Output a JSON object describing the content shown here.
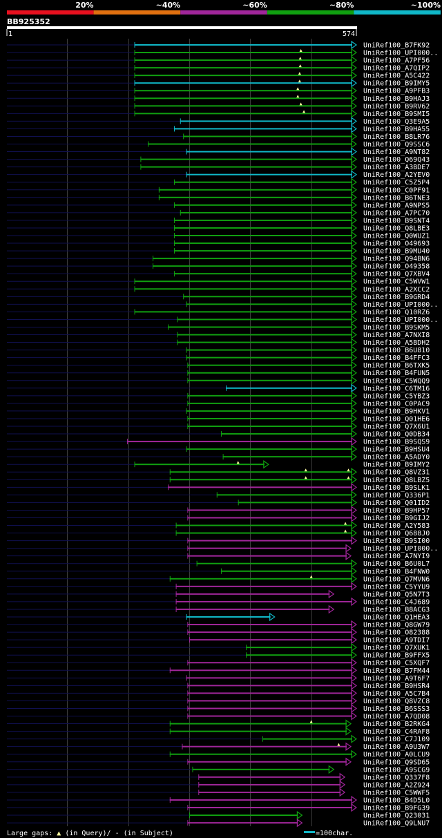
{
  "query_id": "BB925352",
  "ruler": {
    "start_label": "1",
    "end_label": "574",
    "start": 1,
    "end": 574
  },
  "identity_legend": [
    {
      "label": "20%",
      "color": "#e8101f"
    },
    {
      "label": "~40%",
      "color": "#e07010"
    },
    {
      "label": "~60%",
      "color": "#a0269a"
    },
    {
      "label": "~80%",
      "color": "#10a010"
    },
    {
      "label": "~100%",
      "color": "#10b8c8"
    }
  ],
  "footer": {
    "gaps_prefix": "Large gaps:",
    "gaps_query": "(in Query)/",
    "gaps_subject": "- (in Subject)",
    "scale_label": "=100char."
  },
  "chart_data": {
    "type": "alignment-overview",
    "x_axis": {
      "min": 1,
      "max": 574,
      "scale_bar_chars": 100
    },
    "grid": true,
    "hits": [
      {
        "name": "UniRef100_B7FK92",
        "identity": "~100%",
        "start": 210,
        "end": 574,
        "query_gaps": [],
        "arrow": true
      },
      {
        "name": "UniRef100_UPI000..",
        "identity": "~80%",
        "start": 210,
        "end": 574,
        "query_gaps": [
          483
        ],
        "arrow": true
      },
      {
        "name": "UniRef100_A7PF56",
        "identity": "~80%",
        "start": 210,
        "end": 574,
        "query_gaps": [
          482
        ],
        "arrow": true
      },
      {
        "name": "UniRef100_A7QIP2",
        "identity": "~80%",
        "start": 210,
        "end": 574,
        "query_gaps": [
          482
        ],
        "arrow": true
      },
      {
        "name": "UniRef100_A5C422",
        "identity": "~80%",
        "start": 210,
        "end": 574,
        "query_gaps": [
          481
        ],
        "arrow": true
      },
      {
        "name": "UniRef100_B9IMY5",
        "identity": "~100%",
        "start": 210,
        "end": 574,
        "query_gaps": [
          481
        ],
        "arrow": true
      },
      {
        "name": "UniRef100_A9PFB3",
        "identity": "~80%",
        "start": 210,
        "end": 574,
        "query_gaps": [
          478
        ],
        "arrow": true
      },
      {
        "name": "UniRef100_B9HAJ3",
        "identity": "~80%",
        "start": 210,
        "end": 574,
        "query_gaps": [
          478
        ],
        "arrow": true
      },
      {
        "name": "UniRef100_B9RV62",
        "identity": "~80%",
        "start": 210,
        "end": 574,
        "query_gaps": [
          483
        ],
        "arrow": true
      },
      {
        "name": "UniRef100_B9SMI5",
        "identity": "~80%",
        "start": 210,
        "end": 574,
        "query_gaps": [
          488
        ],
        "arrow": true
      },
      {
        "name": "UniRef100_Q3E9A5",
        "identity": "~100%",
        "start": 285,
        "end": 574,
        "query_gaps": [],
        "arrow": true
      },
      {
        "name": "UniRef100_B9HA55",
        "identity": "~100%",
        "start": 275,
        "end": 574,
        "query_gaps": [],
        "arrow": true
      },
      {
        "name": "UniRef100_B8LR76",
        "identity": "~80%",
        "start": 290,
        "end": 574,
        "query_gaps": [],
        "arrow": true
      },
      {
        "name": "UniRef100_Q9SSC6",
        "identity": "~80%",
        "start": 232,
        "end": 574,
        "query_gaps": [],
        "arrow": true
      },
      {
        "name": "UniRef100_A9NT82",
        "identity": "~100%",
        "start": 295,
        "end": 574,
        "query_gaps": [],
        "arrow": true
      },
      {
        "name": "UniRef100_Q69Q43",
        "identity": "~80%",
        "start": 220,
        "end": 574,
        "query_gaps": [],
        "arrow": true
      },
      {
        "name": "UniRef100_A3BDE7",
        "identity": "~80%",
        "start": 220,
        "end": 574,
        "query_gaps": [],
        "arrow": true
      },
      {
        "name": "UniRef100_A2YEV0",
        "identity": "~100%",
        "start": 295,
        "end": 574,
        "query_gaps": [],
        "arrow": true
      },
      {
        "name": "UniRef100_C5Z5P4",
        "identity": "~80%",
        "start": 275,
        "end": 574,
        "query_gaps": [],
        "arrow": true
      },
      {
        "name": "UniRef100_C0PF91",
        "identity": "~80%",
        "start": 250,
        "end": 574,
        "query_gaps": [],
        "arrow": true
      },
      {
        "name": "UniRef100_B6TNE3",
        "identity": "~80%",
        "start": 250,
        "end": 574,
        "query_gaps": [],
        "arrow": true
      },
      {
        "name": "UniRef100_A9NPS5",
        "identity": "~80%",
        "start": 275,
        "end": 574,
        "query_gaps": [],
        "arrow": true
      },
      {
        "name": "UniRef100_A7PC70",
        "identity": "~80%",
        "start": 285,
        "end": 574,
        "query_gaps": [],
        "arrow": true
      },
      {
        "name": "UniRef100_B9SNT4",
        "identity": "~80%",
        "start": 275,
        "end": 574,
        "query_gaps": [],
        "arrow": true
      },
      {
        "name": "UniRef100_Q8LBE3",
        "identity": "~80%",
        "start": 275,
        "end": 574,
        "query_gaps": [],
        "arrow": true
      },
      {
        "name": "UniRef100_Q0WUZ1",
        "identity": "~80%",
        "start": 275,
        "end": 574,
        "query_gaps": [],
        "arrow": true
      },
      {
        "name": "UniRef100_O49693",
        "identity": "~80%",
        "start": 275,
        "end": 574,
        "query_gaps": [],
        "arrow": true
      },
      {
        "name": "UniRef100_B9MU40",
        "identity": "~80%",
        "start": 275,
        "end": 574,
        "query_gaps": [],
        "arrow": true
      },
      {
        "name": "UniRef100_Q94BN6",
        "identity": "~80%",
        "start": 240,
        "end": 574,
        "query_gaps": [],
        "arrow": true
      },
      {
        "name": "UniRef100_O49358",
        "identity": "~80%",
        "start": 240,
        "end": 574,
        "query_gaps": [],
        "arrow": true
      },
      {
        "name": "UniRef100_Q7XBV4",
        "identity": "~80%",
        "start": 275,
        "end": 574,
        "query_gaps": [],
        "arrow": true
      },
      {
        "name": "UniRef100_C5WVW1",
        "identity": "~80%",
        "start": 210,
        "end": 574,
        "query_gaps": [],
        "arrow": true
      },
      {
        "name": "UniRef100_A2XCC2",
        "identity": "~80%",
        "start": 210,
        "end": 574,
        "query_gaps": [],
        "arrow": true
      },
      {
        "name": "UniRef100_B9GRD4",
        "identity": "~80%",
        "start": 290,
        "end": 574,
        "query_gaps": [],
        "arrow": true
      },
      {
        "name": "UniRef100_UPI000..",
        "identity": "~80%",
        "start": 295,
        "end": 574,
        "query_gaps": [],
        "arrow": true
      },
      {
        "name": "UniRef100_Q10RZ6",
        "identity": "~80%",
        "start": 210,
        "end": 574,
        "query_gaps": [],
        "arrow": true
      },
      {
        "name": "UniRef100_UPI000..",
        "identity": "~80%",
        "start": 280,
        "end": 574,
        "query_gaps": [],
        "arrow": true
      },
      {
        "name": "UniRef100_B9SKM5",
        "identity": "~80%",
        "start": 265,
        "end": 574,
        "query_gaps": [],
        "arrow": true
      },
      {
        "name": "UniRef100_A7NXI8",
        "identity": "~80%",
        "start": 280,
        "end": 574,
        "query_gaps": [],
        "arrow": true
      },
      {
        "name": "UniRef100_A5BDH2",
        "identity": "~80%",
        "start": 280,
        "end": 574,
        "query_gaps": [],
        "arrow": true
      },
      {
        "name": "UniRef100_B6U810",
        "identity": "~80%",
        "start": 295,
        "end": 574,
        "query_gaps": [],
        "arrow": true
      },
      {
        "name": "UniRef100_B4FFC3",
        "identity": "~80%",
        "start": 295,
        "end": 574,
        "query_gaps": [],
        "arrow": true
      },
      {
        "name": "UniRef100_B6TXK5",
        "identity": "~80%",
        "start": 297,
        "end": 574,
        "query_gaps": [],
        "arrow": true
      },
      {
        "name": "UniRef100_B4FUN5",
        "identity": "~80%",
        "start": 297,
        "end": 574,
        "query_gaps": [],
        "arrow": true
      },
      {
        "name": "UniRef100_C5WQQ9",
        "identity": "~80%",
        "start": 297,
        "end": 574,
        "query_gaps": [],
        "arrow": true
      },
      {
        "name": "UniRef100_C6TM16",
        "identity": "~100%",
        "start": 360,
        "end": 574,
        "query_gaps": [],
        "arrow": true
      },
      {
        "name": "UniRef100_C5YBZ3",
        "identity": "~80%",
        "start": 297,
        "end": 574,
        "query_gaps": [],
        "arrow": true
      },
      {
        "name": "UniRef100_C0PAC9",
        "identity": "~80%",
        "start": 297,
        "end": 574,
        "query_gaps": [],
        "arrow": true
      },
      {
        "name": "UniRef100_B9HKV1",
        "identity": "~80%",
        "start": 295,
        "end": 574,
        "query_gaps": [],
        "arrow": true
      },
      {
        "name": "UniRef100_Q01HE6",
        "identity": "~80%",
        "start": 297,
        "end": 574,
        "query_gaps": [],
        "arrow": true
      },
      {
        "name": "UniRef100_Q7X6U1",
        "identity": "~80%",
        "start": 297,
        "end": 574,
        "query_gaps": [],
        "arrow": true
      },
      {
        "name": "UniRef100_Q0DB34",
        "identity": "~80%",
        "start": 352,
        "end": 574,
        "query_gaps": [],
        "arrow": true
      },
      {
        "name": "UniRef100_B9SQS9",
        "identity": "~60%",
        "start": 198,
        "end": 574,
        "query_gaps": [],
        "arrow": true
      },
      {
        "name": "UniRef100_B9HSU4",
        "identity": "~80%",
        "start": 295,
        "end": 574,
        "query_gaps": [],
        "arrow": true
      },
      {
        "name": "UniRef100_A5ADY0",
        "identity": "~80%",
        "start": 355,
        "end": 574,
        "query_gaps": [],
        "arrow": true
      },
      {
        "name": "UniRef100_B9IMY2",
        "identity": "~80%",
        "start": 210,
        "end": 430,
        "query_gaps": [
          380
        ],
        "arrow": true
      },
      {
        "name": "UniRef100_Q8VZ31",
        "identity": "~80%",
        "start": 268,
        "end": 574,
        "query_gaps": [
          491,
          561
        ],
        "arrow": true
      },
      {
        "name": "UniRef100_Q8LBZ5",
        "identity": "~80%",
        "start": 268,
        "end": 574,
        "query_gaps": [
          491,
          561
        ],
        "arrow": true
      },
      {
        "name": "UniRef100_B9SLK1",
        "identity": "~60%",
        "start": 265,
        "end": 574,
        "query_gaps": [],
        "arrow": true
      },
      {
        "name": "UniRef100_Q336P1",
        "identity": "~80%",
        "start": 345,
        "end": 574,
        "query_gaps": [],
        "arrow": true
      },
      {
        "name": "UniRef100_Q01ID2",
        "identity": "~80%",
        "start": 380,
        "end": 574,
        "query_gaps": [],
        "arrow": true
      },
      {
        "name": "UniRef100_B9HP57",
        "identity": "~60%",
        "start": 297,
        "end": 574,
        "query_gaps": [],
        "arrow": true
      },
      {
        "name": "UniRef100_B9GIJ2",
        "identity": "~60%",
        "start": 297,
        "end": 574,
        "query_gaps": [],
        "arrow": true
      },
      {
        "name": "UniRef100_A2Y583",
        "identity": "~80%",
        "start": 278,
        "end": 574,
        "query_gaps": [
          556
        ],
        "arrow": true
      },
      {
        "name": "UniRef100_Q688J0",
        "identity": "~80%",
        "start": 278,
        "end": 574,
        "query_gaps": [
          556
        ],
        "arrow": true
      },
      {
        "name": "UniRef100_B9SI00",
        "identity": "~60%",
        "start": 297,
        "end": 574,
        "query_gaps": [],
        "arrow": true
      },
      {
        "name": "UniRef100_UPI000..",
        "identity": "~60%",
        "start": 297,
        "end": 565,
        "query_gaps": [],
        "arrow": true
      },
      {
        "name": "UniRef100_A7NYI9",
        "identity": "~60%",
        "start": 297,
        "end": 565,
        "query_gaps": [],
        "arrow": true
      },
      {
        "name": "UniRef100_B6U0L7",
        "identity": "~80%",
        "start": 312,
        "end": 574,
        "query_gaps": [],
        "arrow": true
      },
      {
        "name": "UniRef100_B4FNW0",
        "identity": "~80%",
        "start": 352,
        "end": 574,
        "query_gaps": [],
        "arrow": true
      },
      {
        "name": "UniRef100_Q7MVN6",
        "identity": "~80%",
        "start": 268,
        "end": 574,
        "query_gaps": [
          500
        ],
        "arrow": true
      },
      {
        "name": "UniRef100_C5YYU9",
        "identity": "~60%",
        "start": 278,
        "end": 574,
        "query_gaps": [],
        "arrow": true
      },
      {
        "name": "UniRef100_Q5N7T3",
        "identity": "~60%",
        "start": 278,
        "end": 537,
        "query_gaps": [],
        "arrow": true
      },
      {
        "name": "UniRef100_C4J689",
        "identity": "~60%",
        "start": 278,
        "end": 574,
        "query_gaps": [],
        "arrow": true
      },
      {
        "name": "UniRef100_B8ACG3",
        "identity": "~60%",
        "start": 278,
        "end": 537,
        "query_gaps": [],
        "arrow": true
      },
      {
        "name": "UniRef100_Q1HEA3",
        "identity": "~100%",
        "start": 295,
        "end": 440,
        "query_gaps": [],
        "arrow": true
      },
      {
        "name": "UniRef100_Q8GW79",
        "identity": "~60%",
        "start": 297,
        "end": 574,
        "query_gaps": [],
        "arrow": true
      },
      {
        "name": "UniRef100_O82388",
        "identity": "~60%",
        "start": 297,
        "end": 574,
        "query_gaps": [],
        "arrow": true
      },
      {
        "name": "UniRef100_A9TDI7",
        "identity": "~60%",
        "start": 300,
        "end": 574,
        "query_gaps": [],
        "arrow": true
      },
      {
        "name": "UniRef100_Q7XUK1",
        "identity": "~80%",
        "start": 393,
        "end": 574,
        "query_gaps": [],
        "arrow": true
      },
      {
        "name": "UniRef100_B9FFX5",
        "identity": "~80%",
        "start": 393,
        "end": 574,
        "query_gaps": [],
        "arrow": true
      },
      {
        "name": "UniRef100_C5XQF7",
        "identity": "~60%",
        "start": 297,
        "end": 574,
        "query_gaps": [],
        "arrow": true
      },
      {
        "name": "UniRef100_B7FM44",
        "identity": "~60%",
        "start": 268,
        "end": 574,
        "query_gaps": [],
        "arrow": true
      },
      {
        "name": "UniRef100_A9T6F7",
        "identity": "~60%",
        "start": 295,
        "end": 574,
        "query_gaps": [],
        "arrow": true
      },
      {
        "name": "UniRef100_B9HSR4",
        "identity": "~60%",
        "start": 297,
        "end": 574,
        "query_gaps": [],
        "arrow": true
      },
      {
        "name": "UniRef100_A5C7B4",
        "identity": "~60%",
        "start": 297,
        "end": 574,
        "query_gaps": [],
        "arrow": true
      },
      {
        "name": "UniRef100_Q8VZC8",
        "identity": "~60%",
        "start": 297,
        "end": 574,
        "query_gaps": [],
        "arrow": true
      },
      {
        "name": "UniRef100_B6SSS3",
        "identity": "~60%",
        "start": 297,
        "end": 574,
        "query_gaps": [],
        "arrow": true
      },
      {
        "name": "UniRef100_A7QD08",
        "identity": "~60%",
        "start": 297,
        "end": 574,
        "query_gaps": [],
        "arrow": true
      },
      {
        "name": "UniRef100_B2RKG4",
        "identity": "~80%",
        "start": 268,
        "end": 565,
        "query_gaps": [
          500
        ],
        "arrow": true
      },
      {
        "name": "UniRef100_C4RAF8",
        "identity": "~80%",
        "start": 268,
        "end": 565,
        "query_gaps": [],
        "arrow": true
      },
      {
        "name": "UniRef100_C7J109",
        "identity": "~80%",
        "start": 420,
        "end": 574,
        "query_gaps": [],
        "arrow": true
      },
      {
        "name": "UniRef100_A9U3W7",
        "identity": "~60%",
        "start": 288,
        "end": 565,
        "query_gaps": [
          545
        ],
        "arrow": true
      },
      {
        "name": "UniRef100_A0LCU9",
        "identity": "~80%",
        "start": 268,
        "end": 574,
        "query_gaps": [],
        "arrow": true
      },
      {
        "name": "UniRef100_Q9SD65",
        "identity": "~60%",
        "start": 297,
        "end": 565,
        "query_gaps": [],
        "arrow": true
      },
      {
        "name": "UniRef100_A9SCG9",
        "identity": "~80%",
        "start": 305,
        "end": 537,
        "query_gaps": [],
        "arrow": true
      },
      {
        "name": "UniRef100_Q337F8",
        "identity": "~60%",
        "start": 315,
        "end": 555,
        "query_gaps": [],
        "arrow": true
      },
      {
        "name": "UniRef100_A2Z924",
        "identity": "~60%",
        "start": 315,
        "end": 555,
        "query_gaps": [],
        "arrow": true
      },
      {
        "name": "UniRef100_C5WWF5",
        "identity": "~60%",
        "start": 315,
        "end": 555,
        "query_gaps": [],
        "arrow": true
      },
      {
        "name": "UniRef100_B4D5L0",
        "identity": "~60%",
        "start": 268,
        "end": 574,
        "query_gaps": [],
        "arrow": true
      },
      {
        "name": "UniRef100_B9FG39",
        "identity": "~60%",
        "start": 297,
        "end": 574,
        "query_gaps": [],
        "arrow": true
      },
      {
        "name": "UniRef100_Q23031",
        "identity": "~80%",
        "start": 300,
        "end": 485,
        "query_gaps": [],
        "arrow": true
      },
      {
        "name": "UniRef100_Q9LNU7",
        "identity": "~60%",
        "start": 297,
        "end": 485,
        "query_gaps": [],
        "arrow": true
      }
    ]
  }
}
